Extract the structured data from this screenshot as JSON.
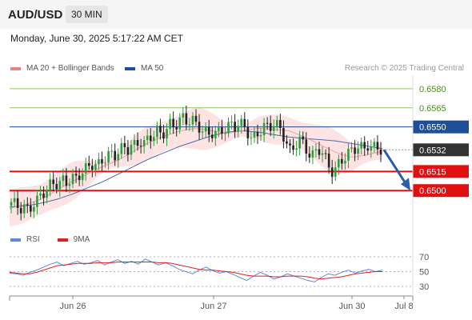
{
  "header": {
    "pair": "AUD/USD",
    "timeframe": "30 MIN",
    "datetime": "Monday, June 30, 2025 5:17:22 AM CET",
    "research": "Research © 2025 Trading Central"
  },
  "legend": {
    "ma20_label": "MA 20 + Bollinger Bands",
    "ma20_color": "#f08080",
    "ma50_label": "MA 50",
    "ma50_color": "#1f4e99"
  },
  "rsi_legend": {
    "rsi_label": "RSI",
    "rsi_color": "#5b8bd9",
    "ma_label": "9MA",
    "ma_color": "#e02020"
  },
  "chart_data": [
    {
      "type": "candlestick",
      "title": "AUD/USD",
      "subtitle": "30 MIN",
      "ylim": [
        0.6475,
        0.659
      ],
      "x_ticks": [
        "Jun 26",
        "Jun 27",
        "Jun 30",
        "Jul 8"
      ],
      "levels": [
        {
          "value": 0.658,
          "label": "0.6580",
          "kind": "target"
        },
        {
          "value": 0.6565,
          "label": "0.6565",
          "kind": "target"
        },
        {
          "value": 0.655,
          "label": "0.6550",
          "kind": "ma50"
        },
        {
          "value": 0.6532,
          "label": "0.6532",
          "kind": "current"
        },
        {
          "value": 0.6515,
          "label": "0.6515",
          "kind": "support"
        },
        {
          "value": 0.65,
          "label": "0.6500",
          "kind": "support"
        }
      ],
      "colors": {
        "up": "#2e9d3e",
        "down": "#222222",
        "target": "#8fc95a",
        "support": "#e01010",
        "ma50": "#1f4e99",
        "current": "#333333",
        "band": "#fde3e3"
      },
      "close_path": [
        0.6491,
        0.6489,
        0.6486,
        0.6487,
        0.6484,
        0.6489,
        0.6492,
        0.6497,
        0.65,
        0.6504,
        0.6506,
        0.6505,
        0.6508,
        0.6506,
        0.651,
        0.6509,
        0.6513,
        0.6516,
        0.6519,
        0.6521,
        0.6519,
        0.6523,
        0.6526,
        0.6529,
        0.6527,
        0.6531,
        0.6534,
        0.6532,
        0.6536,
        0.6535,
        0.6539,
        0.6537,
        0.6541,
        0.6544,
        0.6547,
        0.6543,
        0.6548,
        0.6552,
        0.655,
        0.6555,
        0.6557,
        0.6554,
        0.6556,
        0.6552,
        0.6549,
        0.6546,
        0.6544,
        0.6546,
        0.6545,
        0.6547,
        0.6549,
        0.6552,
        0.655,
        0.6553,
        0.6551,
        0.6546,
        0.654,
        0.6543,
        0.6547,
        0.6551,
        0.6549,
        0.6553,
        0.6551,
        0.6546,
        0.6538,
        0.653,
        0.6535,
        0.6541,
        0.6536,
        0.653,
        0.6527,
        0.6531,
        0.6533,
        0.6526,
        0.6518,
        0.6514,
        0.652,
        0.6524,
        0.6528,
        0.6531,
        0.6533,
        0.6535,
        0.6532,
        0.6536,
        0.6533,
        0.6535,
        0.6532
      ],
      "ma50_path": [
        0.6487,
        0.6488,
        0.649,
        0.6493,
        0.6497,
        0.6502,
        0.6507,
        0.6513,
        0.6519,
        0.6525,
        0.653,
        0.6535,
        0.6539,
        0.6543,
        0.6546,
        0.6547,
        0.6546,
        0.6544,
        0.6542,
        0.6541,
        0.654,
        0.6539,
        0.6537,
        0.6535,
        0.6533
      ],
      "ma20_path": [
        0.6486,
        0.6489,
        0.6493,
        0.65,
        0.6507,
        0.6513,
        0.6519,
        0.6524,
        0.6531,
        0.6538,
        0.6543,
        0.6547,
        0.6549,
        0.6547,
        0.6545,
        0.6547,
        0.6549,
        0.6548,
        0.6547,
        0.6542,
        0.6536,
        0.653,
        0.6526,
        0.6528,
        0.6531
      ],
      "forecast": {
        "from": 0.6532,
        "to": 0.65
      }
    },
    {
      "type": "line",
      "title": "RSI",
      "ylim": [
        20,
        80
      ],
      "y_ticks": [
        70,
        50,
        30
      ],
      "series": [
        {
          "name": "RSI",
          "values": [
            48,
            47,
            45,
            49,
            52,
            56,
            60,
            63,
            58,
            61,
            64,
            60,
            62,
            65,
            59,
            63,
            66,
            61,
            64,
            60,
            67,
            63,
            59,
            62,
            58,
            53,
            50,
            47,
            52,
            56,
            51,
            48,
            50,
            46,
            42,
            38,
            44,
            49,
            45,
            40,
            43,
            47,
            44,
            41,
            38,
            36,
            42,
            47,
            45,
            49,
            52,
            48,
            51,
            53,
            50,
            52
          ]
        },
        {
          "name": "9MA",
          "values": [
            49,
            48,
            47,
            47,
            49,
            52,
            55,
            58,
            59,
            60,
            61,
            61,
            61,
            62,
            62,
            62,
            63,
            63,
            63,
            63,
            63,
            63,
            62,
            62,
            61,
            59,
            57,
            55,
            53,
            52,
            52,
            51,
            50,
            49,
            47,
            45,
            44,
            44,
            44,
            43,
            43,
            44,
            44,
            44,
            43,
            41,
            40,
            41,
            42,
            43,
            45,
            47,
            48,
            49,
            50,
            50
          ]
        }
      ]
    }
  ]
}
